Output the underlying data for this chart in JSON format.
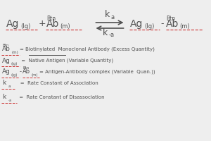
{
  "bg_color": "#eeeeee",
  "text_color": "#505050",
  "underline_color": "#cc3333",
  "eq": {
    "ka": "k",
    "ka_sub": "a",
    "kma": "k",
    "kma_sub": "-a",
    "left1_main": "Ag",
    "left1_sub": "(Ig)",
    "plus": "+",
    "left2_sup": "Btn",
    "left2_main": "Ab",
    "left2_sub": "(m)",
    "right1_main": "Ag",
    "right1_sub": "(Ig)",
    "dash": "-",
    "right2_sup": "Btn",
    "right2_main": "Ab",
    "right2_sub": "(m)"
  },
  "legend": [
    {
      "sup": "Btn",
      "main": "Ab",
      "sub": "(m)",
      "text": " = Biotinylated  Monoclonal Antibody (Excess Quantity)",
      "underline_word": "Biotinylated"
    },
    {
      "sup": "",
      "main": "Ag",
      "sub": "(Ig)",
      "text": " =  Native Antigen (Variable Quantity)",
      "underline_word": ""
    },
    {
      "sup": "",
      "main": "Ag",
      "sub": "(Ig)",
      "dash": "-",
      "sup2": "Btn",
      "main2": "Ab",
      "sub2": "(m)",
      "text": "= Antigen-Antibody complex (Variable  Quan.))",
      "underline_word": ""
    },
    {
      "sup": "",
      "main": "k",
      "sub": "a",
      "text": "    =  Rate Constant of Association",
      "underline_word": ""
    },
    {
      "sup": "",
      "main": "k",
      "sub": "-a",
      "text": " =  Rate Constant of Disassociation",
      "underline_word": ""
    }
  ]
}
